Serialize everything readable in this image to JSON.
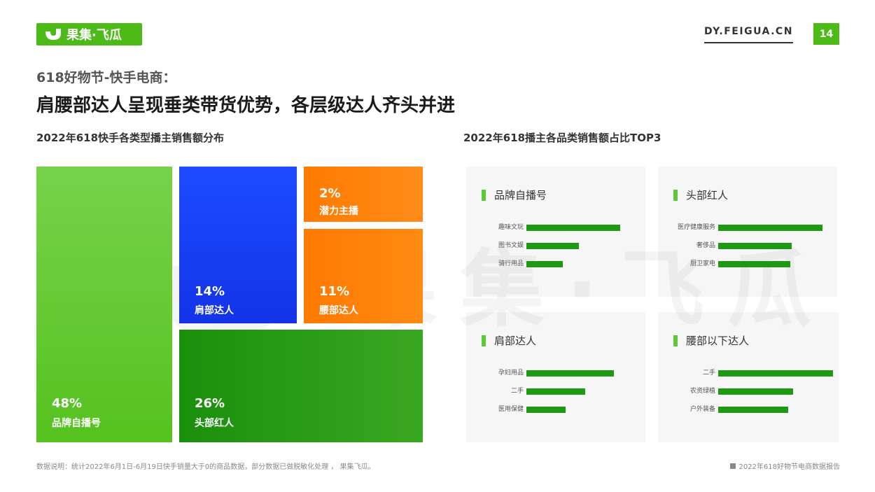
{
  "brand": {
    "logo_text": "果集·飞瓜",
    "url": "DY.FEIGUA.CN",
    "page_number": "14",
    "accent_color": "#4cbb17",
    "watermark_text": "果集·飞瓜"
  },
  "header": {
    "subtitle": "618好物节-快手电商：",
    "title": "肩腰部达人呈现垂类带货优势，各层级达人齐头并进"
  },
  "chart_data": [
    {
      "type": "treemap",
      "title": "2022年618快手各类型播主销售额分布",
      "items": [
        {
          "name": "品牌自播号",
          "percent": "48%",
          "value": 48,
          "color": "#6dcf3f"
        },
        {
          "name": "肩部达人",
          "percent": "14%",
          "value": 14,
          "color": "#1a3cf0"
        },
        {
          "name": "潜力主播",
          "percent": "2%",
          "value": 2,
          "color": "#ff7d00"
        },
        {
          "name": "腰部达人",
          "percent": "11%",
          "value": 11,
          "color": "#ff7d00"
        },
        {
          "name": "头部红人",
          "percent": "26%",
          "value": 26,
          "color": "#1e9a12"
        }
      ]
    },
    {
      "type": "bar",
      "title": "2022年618播主各品类销售额占比TOP3",
      "panels": [
        {
          "name": "品牌自播号",
          "categories": [
            "趣味文玩",
            "图书文娱",
            "骑行用品"
          ],
          "values": [
            0.82,
            0.46,
            0.32
          ]
        },
        {
          "name": "头部红人",
          "categories": [
            "医疗健康服务",
            "奢侈品",
            "厨卫家电"
          ],
          "values": [
            0.91,
            0.64,
            0.63
          ]
        },
        {
          "name": "肩部达人",
          "categories": [
            "孕妇用品",
            "二手",
            "医用保健"
          ],
          "values": [
            0.76,
            0.51,
            0.34
          ]
        },
        {
          "name": "腰部以下达人",
          "categories": [
            "二手",
            "农资绿植",
            "户外装备"
          ],
          "values": [
            1.0,
            0.65,
            0.61
          ]
        }
      ]
    }
  ],
  "footer": {
    "note": "数据说明：统计2022年6月1日-6月19日快手销量大于0的商品数据，部分数据已做脱敏化处理 ， 果集飞瓜。",
    "report_name": "2022年618好物节电商数据报告"
  }
}
